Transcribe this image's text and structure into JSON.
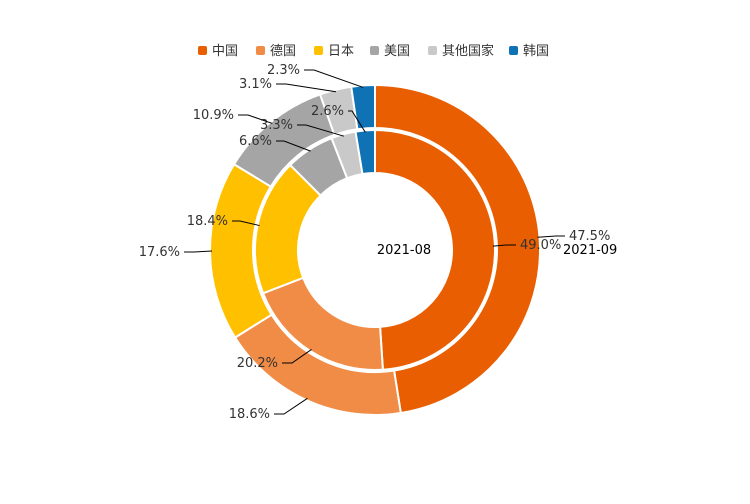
{
  "chart_data": {
    "type": "pie",
    "subtype": "nested-donut",
    "title": "",
    "legend": {
      "placement": "top-center",
      "entries": [
        "中国",
        "德国",
        "日本",
        "美国",
        "其他国家",
        "韩国"
      ]
    },
    "categories": [
      "中国",
      "德国",
      "日本",
      "美国",
      "其他国家",
      "韩国"
    ],
    "colors": {
      "中国": "#e85e00",
      "德国": "#f08c46",
      "日本": "#ffc000",
      "美国": "#a5a5a5",
      "其他国家": "#c9c9c9",
      "韩国": "#0e72b5"
    },
    "series": [
      {
        "name": "2021-08",
        "ring": "inner",
        "values": [
          49.0,
          20.2,
          18.4,
          6.6,
          3.3,
          2.6
        ],
        "labels": [
          "49.0%",
          "20.2%",
          "18.4%",
          "6.6%",
          "3.3%",
          "2.6%"
        ]
      },
      {
        "name": "2021-09",
        "ring": "outer",
        "values": [
          47.5,
          18.6,
          17.6,
          10.9,
          3.1,
          2.3
        ],
        "labels": [
          "47.5%",
          "18.6%",
          "17.6%",
          "10.9%",
          "3.1%",
          "2.3%"
        ]
      }
    ]
  }
}
